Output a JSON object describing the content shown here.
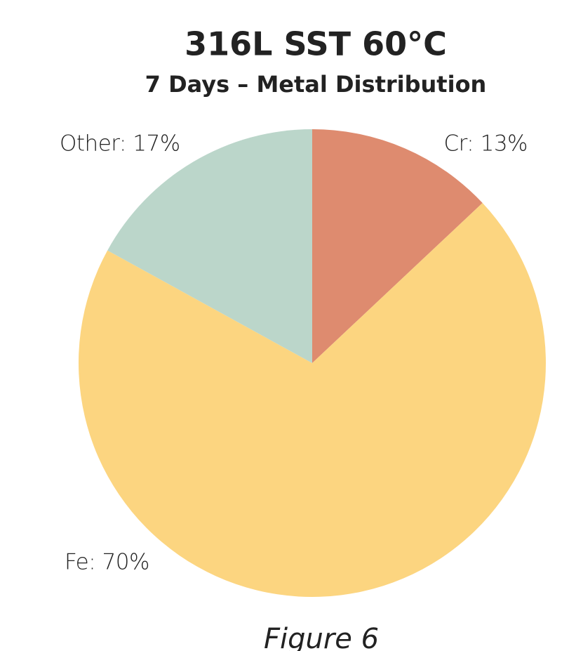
{
  "chart_data": {
    "type": "pie",
    "title": "316L SST 60°C",
    "subtitle": "7 Days – Metal Distribution",
    "values": [
      13,
      70,
      17
    ],
    "value_labels": [
      "Cr: 13%",
      "Fe: 70%",
      "Other: 17%"
    ],
    "colors": [
      "#de8b6f",
      "#fcd580",
      "#bbd6ca"
    ],
    "caption": "Figure 6"
  }
}
